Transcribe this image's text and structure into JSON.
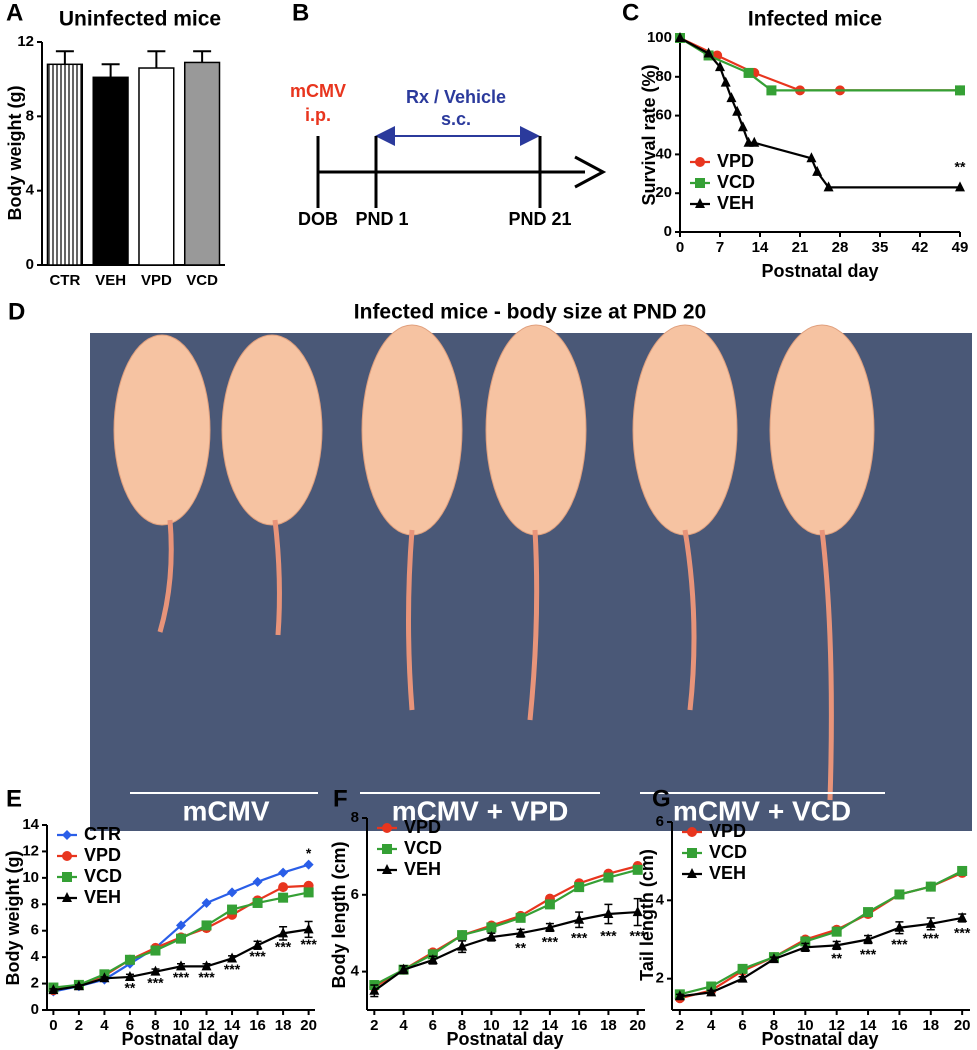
{
  "chart_data": [
    {
      "type": "bar",
      "panel": "A",
      "title": "Uninfected mice",
      "ylabel": "Body weight (g)",
      "categories": [
        "CTR",
        "VEH",
        "VPD",
        "VCD"
      ],
      "values": [
        10.8,
        10.1,
        10.6,
        10.9
      ],
      "errors": [
        0.7,
        0.7,
        0.9,
        0.6
      ],
      "colors": [
        "#ffffff",
        "#000000",
        "#ffffff",
        "#999999"
      ],
      "patterns": [
        "vertical-stripes",
        "solid",
        "solid",
        "solid"
      ],
      "ylim": [
        0,
        12
      ],
      "yticks": [
        0,
        4,
        8,
        12
      ]
    },
    {
      "type": "line",
      "panel": "C",
      "title": "Infected mice",
      "xlabel": "Postnatal day",
      "ylabel": "Survival rate (%)",
      "xlim": [
        0,
        49
      ],
      "xticks": [
        0,
        7,
        14,
        21,
        28,
        35,
        42,
        49
      ],
      "ylim": [
        0,
        100
      ],
      "yticks": [
        0,
        20,
        40,
        60,
        80,
        100
      ],
      "legend": "lower left",
      "series": [
        {
          "name": "VPD",
          "color": "#e8351e",
          "marker": "circle",
          "x": [
            0,
            6.5,
            13,
            21,
            28,
            49
          ],
          "values": [
            100,
            91,
            82,
            73,
            73,
            73
          ]
        },
        {
          "name": "VCD",
          "color": "#35a035",
          "marker": "square",
          "x": [
            0,
            5,
            12,
            16,
            49
          ],
          "values": [
            100,
            91,
            82,
            73,
            73
          ]
        },
        {
          "name": "VEH",
          "color": "#000000",
          "marker": "triangle",
          "x": [
            0,
            5,
            7,
            8,
            9,
            10,
            11,
            12,
            13,
            23,
            24,
            26,
            49
          ],
          "values": [
            100,
            92,
            85,
            77,
            69,
            62,
            54,
            46,
            46,
            38,
            31,
            23,
            23
          ]
        }
      ],
      "annotations": [
        {
          "x": 49,
          "y": 33,
          "text": "**"
        }
      ]
    },
    {
      "type": "line",
      "panel": "E",
      "xlabel": "Postnatal day",
      "ylabel": "Body weight (g)",
      "x": [
        0,
        2,
        4,
        6,
        8,
        10,
        12,
        14,
        16,
        18,
        20
      ],
      "xlim": [
        -0.5,
        20.5
      ],
      "xticks": [
        0,
        2,
        4,
        6,
        8,
        10,
        12,
        14,
        16,
        18,
        20
      ],
      "ylim": [
        0,
        14
      ],
      "yticks": [
        0,
        2,
        4,
        6,
        8,
        10,
        12,
        14
      ],
      "legend": "upper left",
      "series": [
        {
          "name": "CTR",
          "color": "#2a5ee8",
          "marker": "diamond",
          "values": [
            1.4,
            1.8,
            2.3,
            3.5,
            4.7,
            6.4,
            8.1,
            8.9,
            9.7,
            10.4,
            11.0
          ]
        },
        {
          "name": "VPD",
          "color": "#e8351e",
          "marker": "circle",
          "values": [
            1.5,
            1.9,
            2.6,
            3.8,
            4.7,
            5.5,
            6.2,
            7.2,
            8.3,
            9.3,
            9.4
          ]
        },
        {
          "name": "VCD",
          "color": "#35a035",
          "marker": "square",
          "values": [
            1.7,
            1.9,
            2.7,
            3.8,
            4.5,
            5.4,
            6.4,
            7.6,
            8.1,
            8.5,
            8.9
          ]
        },
        {
          "name": "VEH",
          "color": "#000000",
          "marker": "triangle",
          "values": [
            1.5,
            1.8,
            2.4,
            2.5,
            2.9,
            3.3,
            3.3,
            3.9,
            4.9,
            5.8,
            6.1
          ],
          "errors": [
            0.1,
            0.1,
            0.1,
            0.2,
            0.2,
            0.2,
            0.2,
            0.2,
            0.3,
            0.5,
            0.6
          ]
        }
      ],
      "annotations": [
        {
          "x": 6,
          "y": 1.6,
          "text": "**"
        },
        {
          "x": 8,
          "y": 2.0,
          "text": "***"
        },
        {
          "x": 10,
          "y": 2.4,
          "text": "***"
        },
        {
          "x": 12,
          "y": 2.4,
          "text": "***"
        },
        {
          "x": 14,
          "y": 3.0,
          "text": "***"
        },
        {
          "x": 16,
          "y": 4.0,
          "text": "***"
        },
        {
          "x": 18,
          "y": 4.7,
          "text": "***"
        },
        {
          "x": 20,
          "y": 4.9,
          "text": "***"
        },
        {
          "x": 20,
          "y": 11.8,
          "text": "*"
        }
      ]
    },
    {
      "type": "line",
      "panel": "F",
      "xlabel": "Postnatal day",
      "ylabel": "Body length (cm)",
      "x": [
        2,
        4,
        6,
        8,
        10,
        12,
        14,
        16,
        18,
        20
      ],
      "xlim": [
        1.5,
        20.5
      ],
      "xticks": [
        2,
        4,
        6,
        8,
        10,
        12,
        14,
        16,
        18,
        20
      ],
      "ylim": [
        3,
        8
      ],
      "yticks": [
        4,
        6,
        8
      ],
      "legend": "upper left",
      "series": [
        {
          "name": "VPD",
          "color": "#e8351e",
          "marker": "circle",
          "values": [
            3.6,
            4.05,
            4.5,
            4.95,
            5.2,
            5.45,
            5.9,
            6.3,
            6.55,
            6.75
          ]
        },
        {
          "name": "VCD",
          "color": "#35a035",
          "marker": "square",
          "values": [
            3.65,
            4.05,
            4.45,
            4.95,
            5.15,
            5.4,
            5.75,
            6.2,
            6.45,
            6.65
          ]
        },
        {
          "name": "VEH",
          "color": "#000000",
          "marker": "triangle",
          "values": [
            3.5,
            4.05,
            4.3,
            4.65,
            4.9,
            5.0,
            5.15,
            5.35,
            5.5,
            5.55
          ],
          "errors": [
            0.15,
            0.1,
            0.1,
            0.15,
            0.1,
            0.1,
            0.1,
            0.2,
            0.25,
            0.35
          ]
        }
      ],
      "annotations": [
        {
          "x": 12,
          "y": 4.6,
          "text": "**"
        },
        {
          "x": 14,
          "y": 4.75,
          "text": "***"
        },
        {
          "x": 16,
          "y": 4.85,
          "text": "***"
        },
        {
          "x": 18,
          "y": 4.9,
          "text": "***"
        },
        {
          "x": 20,
          "y": 4.9,
          "text": "***"
        }
      ]
    },
    {
      "type": "line",
      "panel": "G",
      "xlabel": "Postnatal day",
      "ylabel": "Tail length (cm)",
      "x": [
        2,
        4,
        6,
        8,
        10,
        12,
        14,
        16,
        18,
        20
      ],
      "xlim": [
        1.5,
        20.5
      ],
      "xticks": [
        2,
        4,
        6,
        8,
        10,
        12,
        14,
        16,
        18,
        20
      ],
      "ylim": [
        1.2,
        6
      ],
      "yticks": [
        2,
        4,
        6
      ],
      "legend": "upper left",
      "series": [
        {
          "name": "VPD",
          "color": "#e8351e",
          "marker": "circle",
          "values": [
            1.5,
            1.7,
            2.2,
            2.55,
            3.0,
            3.25,
            3.65,
            4.15,
            4.35,
            4.7
          ]
        },
        {
          "name": "VCD",
          "color": "#35a035",
          "marker": "square",
          "values": [
            1.6,
            1.8,
            2.25,
            2.55,
            2.95,
            3.2,
            3.7,
            4.15,
            4.35,
            4.75
          ]
        },
        {
          "name": "VEH",
          "color": "#000000",
          "marker": "triangle",
          "values": [
            1.55,
            1.65,
            2.0,
            2.5,
            2.8,
            2.85,
            3.0,
            3.3,
            3.4,
            3.55
          ],
          "errors": [
            0.05,
            0.05,
            0.05,
            0.05,
            0.1,
            0.1,
            0.1,
            0.15,
            0.15,
            0.1
          ]
        }
      ],
      "annotations": [
        {
          "x": 12,
          "y": 2.5,
          "text": "**"
        },
        {
          "x": 14,
          "y": 2.6,
          "text": "***"
        },
        {
          "x": 16,
          "y": 2.85,
          "text": "***"
        },
        {
          "x": 18,
          "y": 3.0,
          "text": "***"
        },
        {
          "x": 20,
          "y": 3.15,
          "text": "***"
        }
      ]
    }
  ],
  "diagram": {
    "panel": "B",
    "infection": "mCMV",
    "route": "i.p.",
    "treatment": "Rx / Vehicle",
    "treatment_route": "s.c.",
    "start": "DOB",
    "day1": "PND 1",
    "day21": "PND 21"
  },
  "photo": {
    "panel": "D",
    "title": "Infected mice - body size at PND 20",
    "groups": [
      "mCMV",
      "mCMV + VPD",
      "mCMV + VCD"
    ]
  }
}
